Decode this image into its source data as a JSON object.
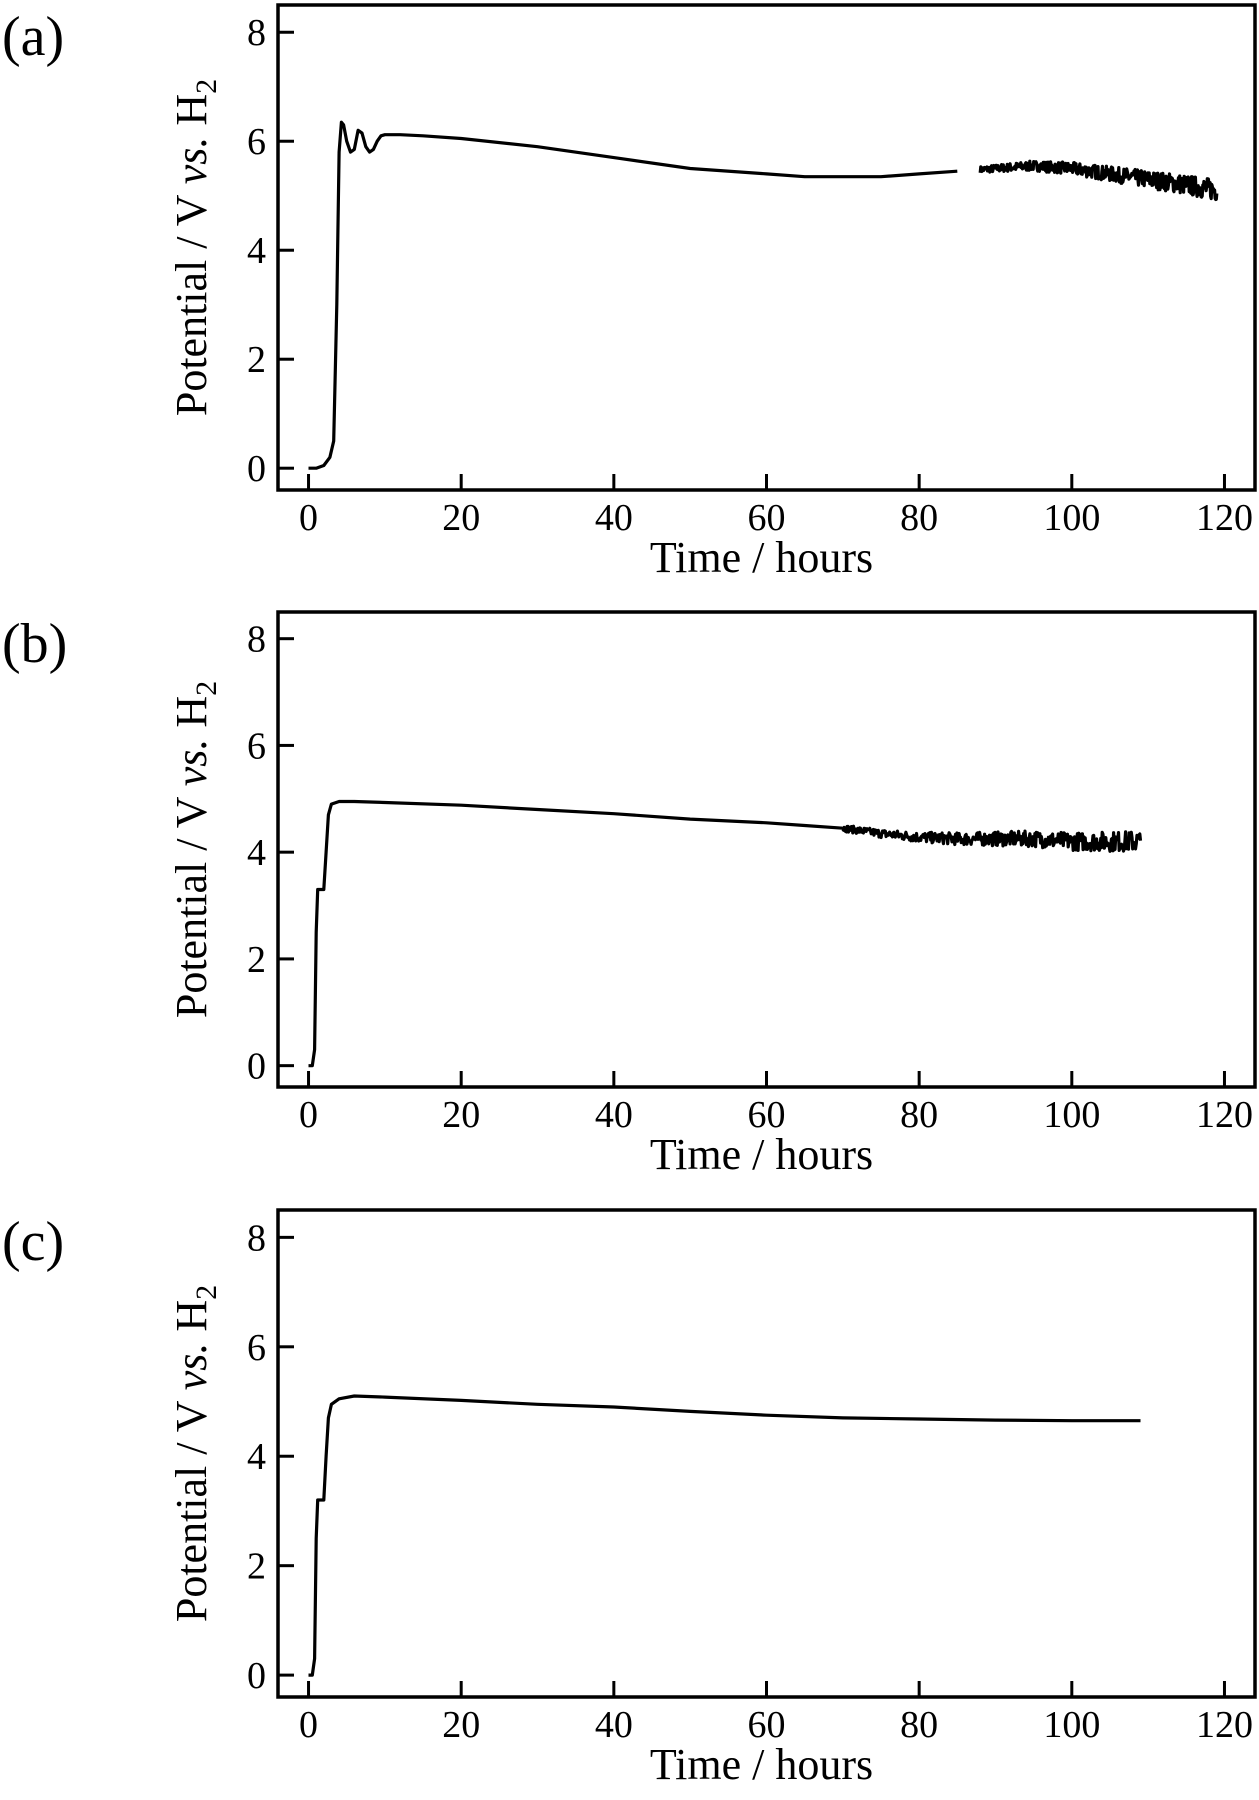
{
  "chart_data": [
    {
      "type": "line",
      "panel_label": "(a)",
      "xlabel": "Time / hours",
      "ylabel_parts": [
        "Potential / V ",
        "vs.",
        " H",
        "2"
      ],
      "xlim": [
        -4,
        124
      ],
      "ylim": [
        -0.4,
        8.5
      ],
      "xticks": [
        0,
        20,
        40,
        60,
        80,
        100,
        120
      ],
      "yticks": [
        0,
        2,
        4,
        6,
        8
      ],
      "grid": false,
      "series": [
        {
          "x": [
            0,
            1,
            2,
            2.8,
            3.3,
            3.7,
            4.0,
            4.3,
            4.6,
            5.0,
            5.5,
            6.0,
            6.5,
            7.0,
            7.5,
            8.0,
            8.5,
            9.0,
            9.5,
            10,
            12,
            15,
            20,
            30,
            40,
            50,
            60,
            65,
            70,
            75,
            80,
            85,
            90,
            95,
            100,
            105,
            110,
            115,
            119
          ],
          "y": [
            0,
            0,
            0.05,
            0.2,
            0.5,
            3.0,
            5.8,
            6.35,
            6.3,
            6.0,
            5.8,
            5.85,
            6.2,
            6.15,
            5.9,
            5.8,
            5.85,
            6.0,
            6.1,
            6.12,
            6.12,
            6.1,
            6.05,
            5.9,
            5.7,
            5.5,
            5.4,
            5.35,
            5.35,
            5.35,
            5.4,
            5.45,
            5.5,
            5.55,
            5.5,
            5.4,
            5.3,
            5.2,
            5.1
          ],
          "noisy_from_x": 88
        }
      ]
    },
    {
      "type": "line",
      "panel_label": "(b)",
      "xlabel": "Time / hours",
      "ylabel_parts": [
        "Potential / V ",
        "vs.",
        " H",
        "2"
      ],
      "xlim": [
        -4,
        124
      ],
      "ylim": [
        -0.4,
        8.5
      ],
      "xticks": [
        0,
        20,
        40,
        60,
        80,
        100,
        120
      ],
      "yticks": [
        0,
        2,
        4,
        6,
        8
      ],
      "grid": false,
      "series": [
        {
          "x": [
            0,
            0.5,
            0.8,
            1.0,
            1.2,
            1.5,
            2.0,
            2.3,
            2.6,
            3.0,
            4.0,
            6,
            10,
            20,
            30,
            40,
            50,
            60,
            65,
            70,
            75,
            80,
            85,
            90,
            95,
            100,
            105,
            109
          ],
          "y": [
            0,
            0,
            0.3,
            2.5,
            3.3,
            3.3,
            3.3,
            4.0,
            4.7,
            4.9,
            4.95,
            4.95,
            4.93,
            4.88,
            4.8,
            4.72,
            4.62,
            4.55,
            4.5,
            4.45,
            4.35,
            4.28,
            4.25,
            4.25,
            4.25,
            4.2,
            4.2,
            4.2
          ],
          "noisy_from_x": 70
        }
      ]
    },
    {
      "type": "line",
      "panel_label": "(c)",
      "xlabel": "Time / hours",
      "ylabel_parts": [
        "Potential / V ",
        "vs.",
        " H",
        "2"
      ],
      "xlim": [
        -4,
        124
      ],
      "ylim": [
        -0.4,
        8.5
      ],
      "xticks": [
        0,
        20,
        40,
        60,
        80,
        100,
        120
      ],
      "yticks": [
        0,
        2,
        4,
        6,
        8
      ],
      "grid": false,
      "series": [
        {
          "x": [
            0,
            0.5,
            0.8,
            1.0,
            1.2,
            1.5,
            2.0,
            2.3,
            2.6,
            3.0,
            4.0,
            6,
            10,
            20,
            30,
            40,
            50,
            60,
            70,
            80,
            90,
            100,
            109
          ],
          "y": [
            0,
            0,
            0.3,
            2.5,
            3.2,
            3.2,
            3.2,
            4.0,
            4.7,
            4.95,
            5.05,
            5.1,
            5.08,
            5.02,
            4.95,
            4.9,
            4.82,
            4.75,
            4.7,
            4.68,
            4.66,
            4.65,
            4.65
          ],
          "noisy_from_x": null
        }
      ]
    }
  ]
}
